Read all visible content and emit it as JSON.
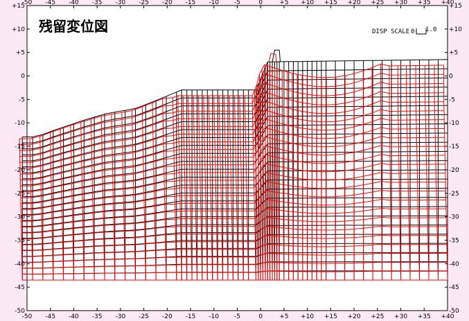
{
  "title": "残留変位図",
  "disp_scale": {
    "label": "DISP SCALE",
    "value": "0",
    "unit": "1.0"
  },
  "axes": {
    "x_ticks": [
      "-50",
      "-45",
      "-40",
      "-35",
      "-30",
      "-25",
      "-20",
      "-15",
      "-10",
      "-5",
      "0",
      "+5",
      "+10",
      "+15",
      "+20",
      "+25",
      "+30",
      "+35",
      "+40"
    ],
    "y_ticks": [
      "+15",
      "+10",
      "+5",
      "0",
      "-5",
      "-10",
      "-15",
      "-20",
      "-25",
      "-30",
      "-35",
      "-40",
      "-45",
      "-50"
    ],
    "xlim": [
      -50,
      40
    ],
    "ylim": [
      -50,
      15
    ]
  },
  "colors": {
    "background": "#fbe9f6",
    "plot_area": "#ffffff",
    "original_mesh": "#000000",
    "deformed_mesh": "#ff0000"
  }
}
